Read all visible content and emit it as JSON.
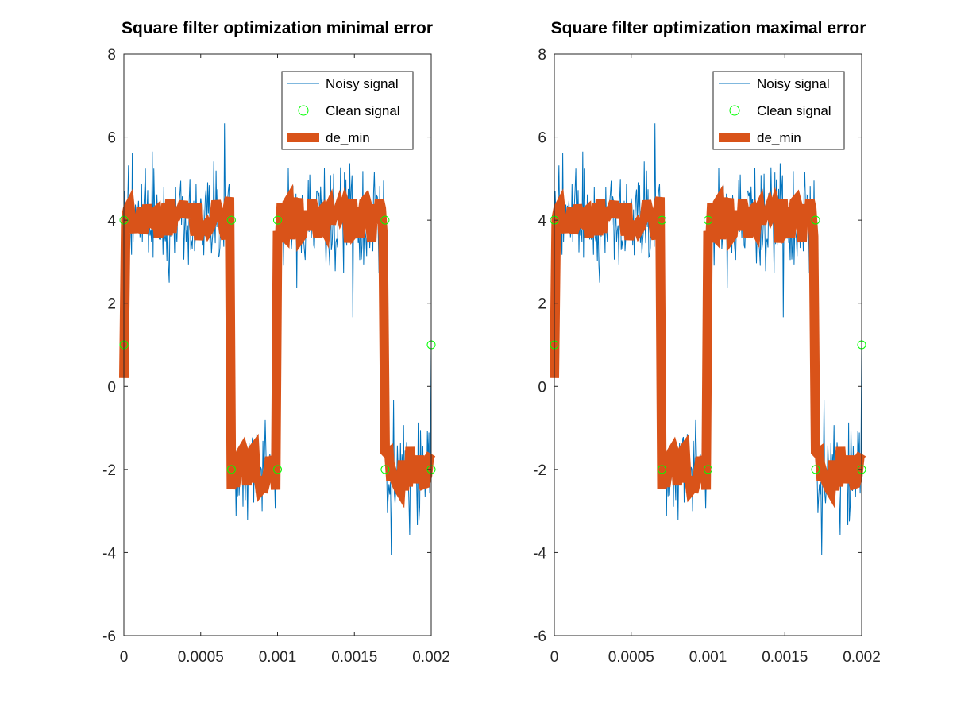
{
  "figure": {
    "background": "#ffffff"
  },
  "colors": {
    "noisy": "#0072bd",
    "clean": "#00ff00",
    "de": "#d95319",
    "axis": "#262626"
  },
  "chart_data": [
    {
      "type": "line",
      "title": "Square filter optimization minimal error",
      "xlabel": "",
      "ylabel": "",
      "xlim": [
        0,
        0.002
      ],
      "ylim": [
        -6,
        8
      ],
      "xticks": [
        0,
        0.0005,
        0.001,
        0.0015,
        0.002
      ],
      "xtick_labels": [
        "0",
        "0.0005",
        "0.001",
        "0.0015",
        "0.002"
      ],
      "yticks": [
        -6,
        -4,
        -2,
        0,
        2,
        4,
        6,
        8
      ],
      "ytick_labels": [
        "-6",
        "-4",
        "-2",
        "0",
        "2",
        "4",
        "6",
        "8"
      ],
      "grid": false,
      "box": true,
      "legend_position": "top-right",
      "legend": [
        "Noisy signal",
        "Clean signal",
        "de_min"
      ],
      "series": [
        {
          "name": "Noisy signal",
          "style": "thin-line",
          "color": "#0072bd",
          "description_levels": {
            "high": 4,
            "low": -2,
            "noise_amplitude_approx": 1.2
          }
        },
        {
          "name": "Clean signal",
          "style": "circle-markers",
          "color": "#00ff00",
          "x": [
            0,
            0,
            0.0007,
            0.0007,
            0.001,
            0.001,
            0.0017,
            0.0017,
            0.002,
            0.002
          ],
          "y": [
            1,
            4,
            4,
            -2,
            -2,
            4,
            4,
            -2,
            -2,
            1
          ]
        },
        {
          "name": "de_min",
          "style": "thick-line",
          "color": "#d95319",
          "description_levels": {
            "high": 4,
            "low": -2
          }
        }
      ]
    },
    {
      "type": "line",
      "title": "Square filter optimization maximal error",
      "xlabel": "",
      "ylabel": "",
      "xlim": [
        0,
        0.002
      ],
      "ylim": [
        -6,
        8
      ],
      "xticks": [
        0,
        0.0005,
        0.001,
        0.0015,
        0.002
      ],
      "xtick_labels": [
        "0",
        "0.0005",
        "0.001",
        "0.0015",
        "0.002"
      ],
      "yticks": [
        -6,
        -4,
        -2,
        0,
        2,
        4,
        6,
        8
      ],
      "ytick_labels": [
        "-6",
        "-4",
        "-2",
        "0",
        "2",
        "4",
        "6",
        "8"
      ],
      "grid": false,
      "box": true,
      "legend_position": "top-right",
      "legend": [
        "Noisy signal",
        "Clean signal",
        "de_min"
      ],
      "series": [
        {
          "name": "Noisy signal",
          "style": "thin-line",
          "color": "#0072bd",
          "description_levels": {
            "high": 4,
            "low": -2,
            "noise_amplitude_approx": 1.2
          }
        },
        {
          "name": "Clean signal",
          "style": "circle-markers",
          "color": "#00ff00",
          "x": [
            0,
            0,
            0.0007,
            0.0007,
            0.001,
            0.001,
            0.0017,
            0.0017,
            0.002,
            0.002
          ],
          "y": [
            1,
            4,
            4,
            -2,
            -2,
            4,
            4,
            -2,
            -2,
            1
          ]
        },
        {
          "name": "de_min",
          "style": "thick-line",
          "color": "#d95319",
          "description_levels": {
            "high": 4,
            "low": -2
          }
        }
      ]
    }
  ]
}
